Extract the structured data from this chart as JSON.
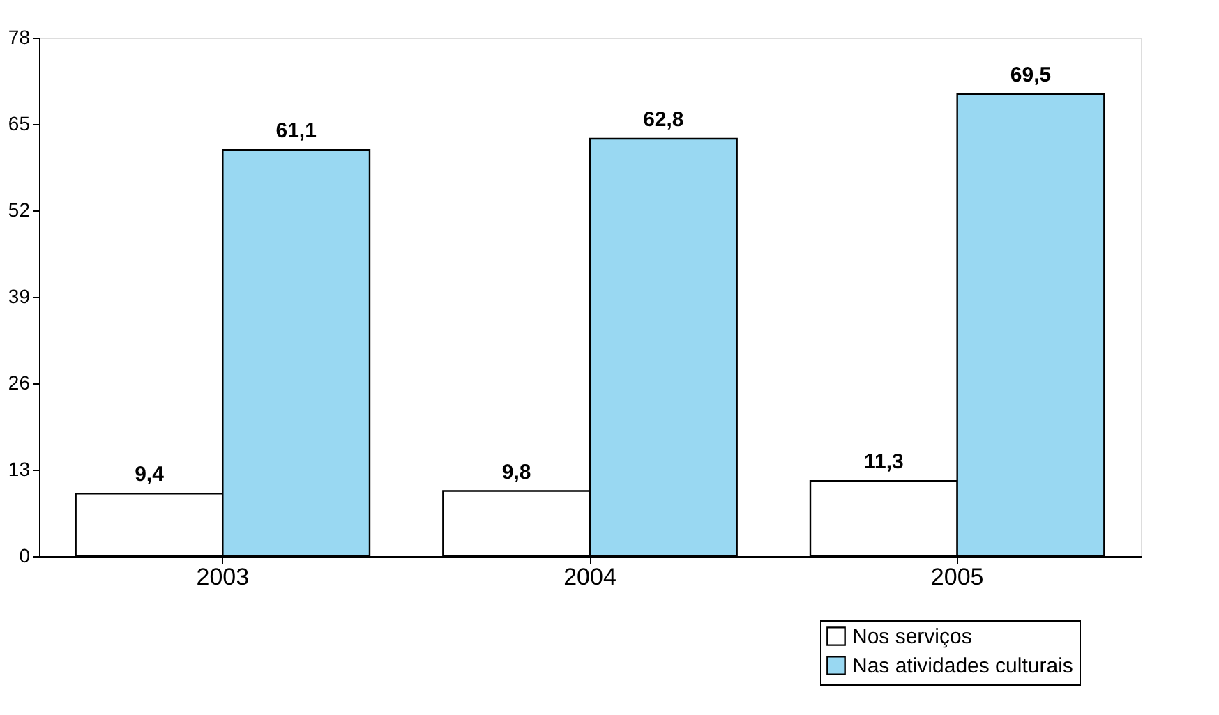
{
  "chart_data": {
    "type": "bar",
    "categories": [
      "2003",
      "2004",
      "2005"
    ],
    "series": [
      {
        "name": "Nos serviços",
        "color": "#ffffff",
        "values": [
          9.4,
          9.8,
          11.3
        ],
        "value_labels": [
          "9,4",
          "9,8",
          "11,3"
        ]
      },
      {
        "name": "Nas atividades culturais",
        "color": "#99d8f2",
        "values": [
          61.1,
          62.8,
          69.5
        ],
        "value_labels": [
          "61,1",
          "62,8",
          "69,5"
        ]
      }
    ],
    "ylim": [
      0,
      78
    ],
    "yticks": [
      0,
      13,
      26,
      39,
      52,
      65,
      78
    ],
    "grid": false,
    "legend": "bottom right"
  }
}
